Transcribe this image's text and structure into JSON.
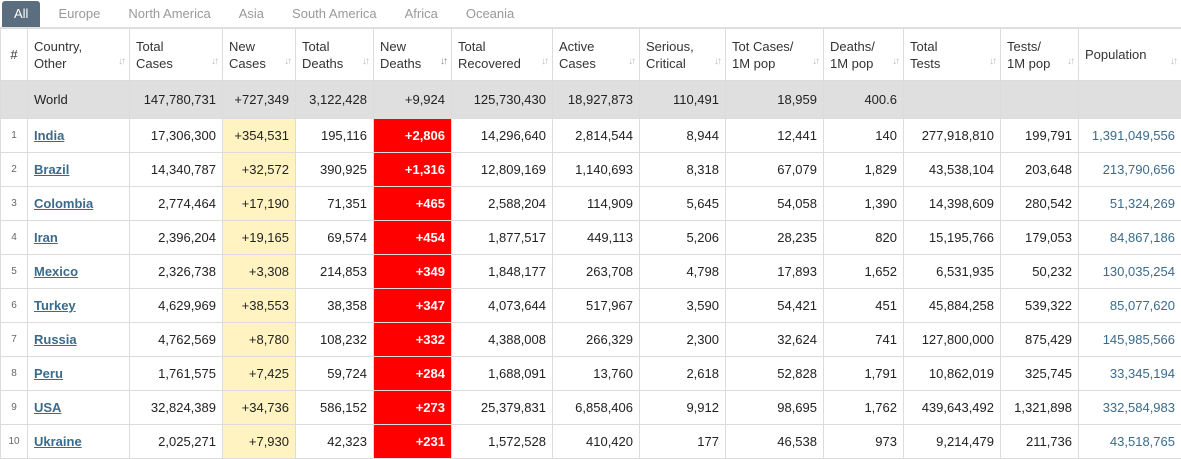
{
  "tabs": [
    "All",
    "Europe",
    "North America",
    "Asia",
    "South America",
    "Africa",
    "Oceania"
  ],
  "columns": [
    {
      "key": "idx",
      "l1": "#",
      "l2": ""
    },
    {
      "key": "country",
      "l1": "Country,",
      "l2": "Other"
    },
    {
      "key": "total_cases",
      "l1": "Total",
      "l2": "Cases"
    },
    {
      "key": "new_cases",
      "l1": "New",
      "l2": "Cases"
    },
    {
      "key": "total_deaths",
      "l1": "Total",
      "l2": "Deaths"
    },
    {
      "key": "new_deaths",
      "l1": "New",
      "l2": "Deaths"
    },
    {
      "key": "total_recovered",
      "l1": "Total",
      "l2": "Recovered"
    },
    {
      "key": "active_cases",
      "l1": "Active",
      "l2": "Cases"
    },
    {
      "key": "serious",
      "l1": "Serious,",
      "l2": "Critical"
    },
    {
      "key": "cases_per_m",
      "l1": "Tot Cases/",
      "l2": "1M pop"
    },
    {
      "key": "deaths_per_m",
      "l1": "Deaths/",
      "l2": "1M pop"
    },
    {
      "key": "total_tests",
      "l1": "Total",
      "l2": "Tests"
    },
    {
      "key": "tests_per_m",
      "l1": "Tests/",
      "l2": "1M pop"
    },
    {
      "key": "population",
      "l1": "Population",
      "l2": ""
    }
  ],
  "world": {
    "country": "World",
    "total_cases": "147,780,731",
    "new_cases": "+727,349",
    "total_deaths": "3,122,428",
    "new_deaths": "+9,924",
    "total_recovered": "125,730,430",
    "active_cases": "18,927,873",
    "serious": "110,491",
    "cases_per_m": "18,959",
    "deaths_per_m": "400.6",
    "total_tests": "",
    "tests_per_m": "",
    "population": ""
  },
  "rows": [
    {
      "idx": "1",
      "country": "India",
      "total_cases": "17,306,300",
      "new_cases": "+354,531",
      "total_deaths": "195,116",
      "new_deaths": "+2,806",
      "total_recovered": "14,296,640",
      "active_cases": "2,814,544",
      "serious": "8,944",
      "cases_per_m": "12,441",
      "deaths_per_m": "140",
      "total_tests": "277,918,810",
      "tests_per_m": "199,791",
      "population": "1,391,049,556"
    },
    {
      "idx": "2",
      "country": "Brazil",
      "total_cases": "14,340,787",
      "new_cases": "+32,572",
      "total_deaths": "390,925",
      "new_deaths": "+1,316",
      "total_recovered": "12,809,169",
      "active_cases": "1,140,693",
      "serious": "8,318",
      "cases_per_m": "67,079",
      "deaths_per_m": "1,829",
      "total_tests": "43,538,104",
      "tests_per_m": "203,648",
      "population": "213,790,656"
    },
    {
      "idx": "3",
      "country": "Colombia",
      "total_cases": "2,774,464",
      "new_cases": "+17,190",
      "total_deaths": "71,351",
      "new_deaths": "+465",
      "total_recovered": "2,588,204",
      "active_cases": "114,909",
      "serious": "5,645",
      "cases_per_m": "54,058",
      "deaths_per_m": "1,390",
      "total_tests": "14,398,609",
      "tests_per_m": "280,542",
      "population": "51,324,269"
    },
    {
      "idx": "4",
      "country": "Iran",
      "total_cases": "2,396,204",
      "new_cases": "+19,165",
      "total_deaths": "69,574",
      "new_deaths": "+454",
      "total_recovered": "1,877,517",
      "active_cases": "449,113",
      "serious": "5,206",
      "cases_per_m": "28,235",
      "deaths_per_m": "820",
      "total_tests": "15,195,766",
      "tests_per_m": "179,053",
      "population": "84,867,186"
    },
    {
      "idx": "5",
      "country": "Mexico",
      "total_cases": "2,326,738",
      "new_cases": "+3,308",
      "total_deaths": "214,853",
      "new_deaths": "+349",
      "total_recovered": "1,848,177",
      "active_cases": "263,708",
      "serious": "4,798",
      "cases_per_m": "17,893",
      "deaths_per_m": "1,652",
      "total_tests": "6,531,935",
      "tests_per_m": "50,232",
      "population": "130,035,254"
    },
    {
      "idx": "6",
      "country": "Turkey",
      "total_cases": "4,629,969",
      "new_cases": "+38,553",
      "total_deaths": "38,358",
      "new_deaths": "+347",
      "total_recovered": "4,073,644",
      "active_cases": "517,967",
      "serious": "3,590",
      "cases_per_m": "54,421",
      "deaths_per_m": "451",
      "total_tests": "45,884,258",
      "tests_per_m": "539,322",
      "population": "85,077,620"
    },
    {
      "idx": "7",
      "country": "Russia",
      "total_cases": "4,762,569",
      "new_cases": "+8,780",
      "total_deaths": "108,232",
      "new_deaths": "+332",
      "total_recovered": "4,388,008",
      "active_cases": "266,329",
      "serious": "2,300",
      "cases_per_m": "32,624",
      "deaths_per_m": "741",
      "total_tests": "127,800,000",
      "tests_per_m": "875,429",
      "population": "145,985,566"
    },
    {
      "idx": "8",
      "country": "Peru",
      "total_cases": "1,761,575",
      "new_cases": "+7,425",
      "total_deaths": "59,724",
      "new_deaths": "+284",
      "total_recovered": "1,688,091",
      "active_cases": "13,760",
      "serious": "2,618",
      "cases_per_m": "52,828",
      "deaths_per_m": "1,791",
      "total_tests": "10,862,019",
      "tests_per_m": "325,745",
      "population": "33,345,194"
    },
    {
      "idx": "9",
      "country": "USA",
      "total_cases": "32,824,389",
      "new_cases": "+34,736",
      "total_deaths": "586,152",
      "new_deaths": "+273",
      "total_recovered": "25,379,831",
      "active_cases": "6,858,406",
      "serious": "9,912",
      "cases_per_m": "98,695",
      "deaths_per_m": "1,762",
      "total_tests": "439,643,492",
      "tests_per_m": "1,321,898",
      "population": "332,584,983"
    },
    {
      "idx": "10",
      "country": "Ukraine",
      "total_cases": "2,025,271",
      "new_cases": "+7,930",
      "total_deaths": "42,323",
      "new_deaths": "+231",
      "total_recovered": "1,572,528",
      "active_cases": "410,420",
      "serious": "177",
      "cases_per_m": "46,538",
      "deaths_per_m": "973",
      "total_tests": "9,214,479",
      "tests_per_m": "211,736",
      "population": "43,518,765"
    }
  ]
}
